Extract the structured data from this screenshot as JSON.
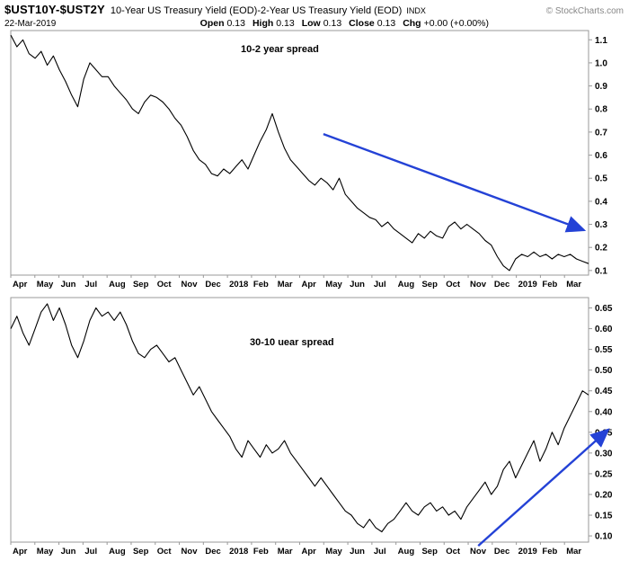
{
  "header": {
    "symbol": "$UST10Y-$UST2Y",
    "description": "10-Year US Treasury Yield (EOD)-2-Year US Treasury Yield (EOD)",
    "exchange": "INDX",
    "copyright": "© StockCharts.com",
    "date": "22-Mar-2019",
    "quote": [
      {
        "label": "Open",
        "value": "0.13"
      },
      {
        "label": "High",
        "value": "0.13"
      },
      {
        "label": "Low",
        "value": "0.13"
      },
      {
        "label": "Close",
        "value": "0.13"
      },
      {
        "label": "Chg",
        "value": "+0.00 (+0.00%)"
      }
    ]
  },
  "colors": {
    "line": "#000000",
    "arrow": "#2442d6",
    "frame": "#999999",
    "text": "#000000"
  },
  "chart_data": [
    {
      "type": "line",
      "title": "10-2 year spread",
      "xlabel": "",
      "ylabel": "",
      "grid": false,
      "legend": "none",
      "x_labels": [
        "Apr",
        "May",
        "Jun",
        "Jul",
        "Aug",
        "Sep",
        "Oct",
        "Nov",
        "Dec",
        "2018",
        "Feb",
        "Mar",
        "Apr",
        "May",
        "Jun",
        "Jul",
        "Aug",
        "Sep",
        "Oct",
        "Nov",
        "Dec",
        "2019",
        "Feb",
        "Mar"
      ],
      "bold_labels": [
        "2018",
        "2019"
      ],
      "ylim": [
        0.08,
        1.14
      ],
      "yticks": [
        {
          "value": 1.1,
          "label": "1.1"
        },
        {
          "value": 1.0,
          "label": "1.0"
        },
        {
          "value": 0.9,
          "label": "0.9"
        },
        {
          "value": 0.8,
          "label": "0.8"
        },
        {
          "value": 0.7,
          "label": "0.7"
        },
        {
          "value": 0.6,
          "label": "0.6"
        },
        {
          "value": 0.5,
          "label": "0.5"
        },
        {
          "value": 0.4,
          "label": "0.4"
        },
        {
          "value": 0.3,
          "label": "0.3"
        },
        {
          "value": 0.2,
          "label": "0.2"
        },
        {
          "value": 0.1,
          "label": "0.1"
        }
      ],
      "values": [
        1.12,
        1.07,
        1.1,
        1.04,
        1.02,
        1.05,
        0.99,
        1.03,
        0.97,
        0.92,
        0.86,
        0.81,
        0.93,
        1.0,
        0.97,
        0.94,
        0.94,
        0.9,
        0.87,
        0.84,
        0.8,
        0.78,
        0.83,
        0.86,
        0.85,
        0.83,
        0.8,
        0.76,
        0.73,
        0.68,
        0.62,
        0.58,
        0.56,
        0.52,
        0.51,
        0.54,
        0.52,
        0.55,
        0.58,
        0.54,
        0.6,
        0.66,
        0.71,
        0.78,
        0.7,
        0.63,
        0.58,
        0.55,
        0.52,
        0.49,
        0.47,
        0.5,
        0.48,
        0.45,
        0.5,
        0.43,
        0.4,
        0.37,
        0.35,
        0.33,
        0.32,
        0.29,
        0.31,
        0.28,
        0.26,
        0.24,
        0.22,
        0.26,
        0.24,
        0.27,
        0.25,
        0.24,
        0.29,
        0.31,
        0.28,
        0.3,
        0.28,
        0.26,
        0.23,
        0.21,
        0.16,
        0.12,
        0.1,
        0.15,
        0.17,
        0.16,
        0.18,
        0.16,
        0.17,
        0.15,
        0.17,
        0.16,
        0.17,
        0.15,
        0.14,
        0.13
      ],
      "annotation": {
        "arrow": {
          "x1": 0.541,
          "y1": 0.423,
          "x2": 0.992,
          "y2": 0.816
        }
      }
    },
    {
      "type": "line",
      "title": "30-10 uear spread",
      "xlabel": "",
      "ylabel": "",
      "grid": false,
      "legend": "none",
      "x_labels": [
        "Apr",
        "May",
        "Jun",
        "Jul",
        "Aug",
        "Sep",
        "Oct",
        "Nov",
        "Dec",
        "2018",
        "Feb",
        "Mar",
        "Apr",
        "May",
        "Jun",
        "Jul",
        "Aug",
        "Sep",
        "Oct",
        "Nov",
        "Dec",
        "2019",
        "Feb",
        "Mar"
      ],
      "bold_labels": [
        "2018",
        "2019"
      ],
      "ylim": [
        0.085,
        0.675
      ],
      "yticks": [
        {
          "value": 0.65,
          "label": "0.65"
        },
        {
          "value": 0.6,
          "label": "0.60"
        },
        {
          "value": 0.55,
          "label": "0.55"
        },
        {
          "value": 0.5,
          "label": "0.50"
        },
        {
          "value": 0.45,
          "label": "0.45"
        },
        {
          "value": 0.4,
          "label": "0.40"
        },
        {
          "value": 0.35,
          "label": "0.35"
        },
        {
          "value": 0.3,
          "label": "0.30"
        },
        {
          "value": 0.25,
          "label": "0.25"
        },
        {
          "value": 0.2,
          "label": "0.20"
        },
        {
          "value": 0.15,
          "label": "0.15"
        },
        {
          "value": 0.1,
          "label": "0.10"
        }
      ],
      "values": [
        0.6,
        0.63,
        0.59,
        0.56,
        0.6,
        0.64,
        0.66,
        0.62,
        0.65,
        0.61,
        0.56,
        0.53,
        0.57,
        0.62,
        0.65,
        0.63,
        0.64,
        0.62,
        0.64,
        0.61,
        0.57,
        0.54,
        0.53,
        0.55,
        0.56,
        0.54,
        0.52,
        0.53,
        0.5,
        0.47,
        0.44,
        0.46,
        0.43,
        0.4,
        0.38,
        0.36,
        0.34,
        0.31,
        0.29,
        0.33,
        0.31,
        0.29,
        0.32,
        0.3,
        0.31,
        0.33,
        0.3,
        0.28,
        0.26,
        0.24,
        0.22,
        0.24,
        0.22,
        0.2,
        0.18,
        0.16,
        0.15,
        0.13,
        0.12,
        0.14,
        0.12,
        0.11,
        0.13,
        0.14,
        0.16,
        0.18,
        0.16,
        0.15,
        0.17,
        0.18,
        0.16,
        0.17,
        0.15,
        0.16,
        0.14,
        0.17,
        0.19,
        0.21,
        0.23,
        0.2,
        0.22,
        0.26,
        0.28,
        0.24,
        0.27,
        0.3,
        0.33,
        0.28,
        0.31,
        0.35,
        0.32,
        0.36,
        0.39,
        0.42,
        0.45,
        0.44
      ],
      "annotation": {
        "arrow": {
          "x1": 0.809,
          "y1": 1.015,
          "x2": 1.034,
          "y2": 0.54
        }
      }
    }
  ]
}
